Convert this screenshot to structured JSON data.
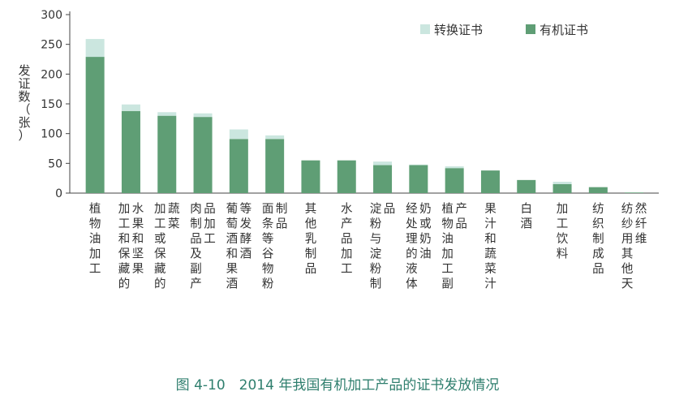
{
  "caption": "图 4-10　2014 年我国有机加工产品的证书发放情况",
  "chart_data": {
    "type": "bar",
    "stacked": true,
    "ylabel": "发证数（张）",
    "ylim": [
      0,
      300
    ],
    "yticks": [
      0,
      50,
      100,
      150,
      200,
      250,
      300
    ],
    "grid": false,
    "legend_position": "top-right",
    "categories": [
      "植物油加工",
      "加工和保藏的水果和坚果",
      "加工或保藏的蔬菜",
      "肉制品及副产品加工",
      "葡萄酒和果酒等发酵酒",
      "面条等谷物粉制品",
      "其他乳制品",
      "水产品加工",
      "淀粉与淀粉制品",
      "经处理的液体奶或奶油",
      "植物油加工副产品",
      "果汁和蔬菜汁",
      "白酒",
      "加工饮料",
      "纺织制成品",
      "纺纱用其他天然纤维"
    ],
    "series": [
      {
        "name": "有机证书",
        "color": "#5f9e75",
        "values": [
          229,
          138,
          130,
          128,
          91,
          91,
          55,
          55,
          47,
          47,
          42,
          38,
          22,
          15,
          10,
          1
        ]
      },
      {
        "name": "转换证书",
        "color": "#cbe6df",
        "values": [
          30,
          11,
          6,
          6,
          16,
          6,
          0,
          0,
          6,
          1,
          3,
          0,
          0,
          4,
          0,
          0
        ]
      }
    ]
  }
}
